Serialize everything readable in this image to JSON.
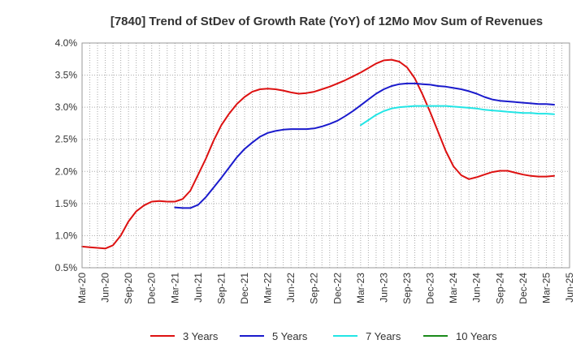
{
  "chart_data": {
    "type": "line",
    "title": "[7840]  Trend of StDev of Growth Rate (YoY) of 12Mo Mov Sum of Revenues",
    "xlabel": "",
    "ylabel": "",
    "ylim": [
      0.5,
      4.0
    ],
    "y_ticks": [
      "0.5%",
      "1.0%",
      "1.5%",
      "2.0%",
      "2.5%",
      "3.0%",
      "3.5%",
      "4.0%"
    ],
    "x_tick_labels": [
      "Mar-20",
      "Jun-20",
      "Sep-20",
      "Dec-20",
      "Mar-21",
      "Jun-21",
      "Sep-21",
      "Dec-21",
      "Mar-22",
      "Jun-22",
      "Sep-22",
      "Dec-22",
      "Mar-23",
      "Jun-23",
      "Sep-23",
      "Dec-23",
      "Mar-24",
      "Jun-24",
      "Sep-24",
      "Dec-24",
      "Mar-25",
      "Jun-25"
    ],
    "x_unit": "months since Mar-20",
    "grid": true,
    "legend_position": "bottom",
    "series": [
      {
        "name": "3 Years",
        "color": "#dd1111",
        "points": [
          [
            0,
            0.83
          ],
          [
            1,
            0.82
          ],
          [
            2,
            0.81
          ],
          [
            3,
            0.8
          ],
          [
            4,
            0.85
          ],
          [
            5,
            1.0
          ],
          [
            6,
            1.22
          ],
          [
            7,
            1.38
          ],
          [
            8,
            1.47
          ],
          [
            9,
            1.53
          ],
          [
            10,
            1.54
          ],
          [
            11,
            1.53
          ],
          [
            12,
            1.53
          ],
          [
            13,
            1.57
          ],
          [
            14,
            1.7
          ],
          [
            15,
            1.95
          ],
          [
            16,
            2.2
          ],
          [
            17,
            2.48
          ],
          [
            18,
            2.72
          ],
          [
            19,
            2.9
          ],
          [
            20,
            3.05
          ],
          [
            21,
            3.16
          ],
          [
            22,
            3.24
          ],
          [
            23,
            3.28
          ],
          [
            24,
            3.29
          ],
          [
            25,
            3.28
          ],
          [
            26,
            3.26
          ],
          [
            27,
            3.23
          ],
          [
            28,
            3.21
          ],
          [
            29,
            3.22
          ],
          [
            30,
            3.24
          ],
          [
            31,
            3.28
          ],
          [
            32,
            3.32
          ],
          [
            33,
            3.37
          ],
          [
            34,
            3.42
          ],
          [
            35,
            3.48
          ],
          [
            36,
            3.54
          ],
          [
            37,
            3.61
          ],
          [
            38,
            3.68
          ],
          [
            39,
            3.73
          ],
          [
            40,
            3.74
          ],
          [
            41,
            3.71
          ],
          [
            42,
            3.62
          ],
          [
            43,
            3.45
          ],
          [
            44,
            3.2
          ],
          [
            45,
            2.92
          ],
          [
            46,
            2.62
          ],
          [
            47,
            2.32
          ],
          [
            48,
            2.08
          ],
          [
            49,
            1.94
          ],
          [
            50,
            1.88
          ],
          [
            51,
            1.91
          ],
          [
            52,
            1.95
          ],
          [
            53,
            1.99
          ],
          [
            54,
            2.01
          ],
          [
            55,
            2.01
          ],
          [
            56,
            1.98
          ],
          [
            57,
            1.95
          ],
          [
            58,
            1.93
          ],
          [
            59,
            1.92
          ],
          [
            60,
            1.92
          ],
          [
            61,
            1.93
          ]
        ]
      },
      {
        "name": "5 Years",
        "color": "#1a1acc",
        "points": [
          [
            12,
            1.44
          ],
          [
            13,
            1.43
          ],
          [
            14,
            1.43
          ],
          [
            15,
            1.48
          ],
          [
            16,
            1.6
          ],
          [
            17,
            1.75
          ],
          [
            18,
            1.9
          ],
          [
            19,
            2.06
          ],
          [
            20,
            2.22
          ],
          [
            21,
            2.35
          ],
          [
            22,
            2.45
          ],
          [
            23,
            2.54
          ],
          [
            24,
            2.6
          ],
          [
            25,
            2.63
          ],
          [
            26,
            2.65
          ],
          [
            27,
            2.66
          ],
          [
            28,
            2.66
          ],
          [
            29,
            2.66
          ],
          [
            30,
            2.67
          ],
          [
            31,
            2.7
          ],
          [
            32,
            2.74
          ],
          [
            33,
            2.79
          ],
          [
            34,
            2.86
          ],
          [
            35,
            2.94
          ],
          [
            36,
            3.03
          ],
          [
            37,
            3.12
          ],
          [
            38,
            3.21
          ],
          [
            39,
            3.28
          ],
          [
            40,
            3.33
          ],
          [
            41,
            3.36
          ],
          [
            42,
            3.37
          ],
          [
            43,
            3.37
          ],
          [
            44,
            3.36
          ],
          [
            45,
            3.35
          ],
          [
            46,
            3.33
          ],
          [
            47,
            3.32
          ],
          [
            48,
            3.3
          ],
          [
            49,
            3.28
          ],
          [
            50,
            3.25
          ],
          [
            51,
            3.21
          ],
          [
            52,
            3.16
          ],
          [
            53,
            3.12
          ],
          [
            54,
            3.1
          ],
          [
            55,
            3.09
          ],
          [
            56,
            3.08
          ],
          [
            57,
            3.07
          ],
          [
            58,
            3.06
          ],
          [
            59,
            3.05
          ],
          [
            60,
            3.05
          ],
          [
            61,
            3.04
          ]
        ]
      },
      {
        "name": "7 Years",
        "color": "#22e5e5",
        "points": [
          [
            36,
            2.72
          ],
          [
            37,
            2.8
          ],
          [
            38,
            2.88
          ],
          [
            39,
            2.94
          ],
          [
            40,
            2.98
          ],
          [
            41,
            3.0
          ],
          [
            42,
            3.01
          ],
          [
            43,
            3.02
          ],
          [
            44,
            3.02
          ],
          [
            45,
            3.02
          ],
          [
            46,
            3.02
          ],
          [
            47,
            3.02
          ],
          [
            48,
            3.01
          ],
          [
            49,
            3.0
          ],
          [
            50,
            2.99
          ],
          [
            51,
            2.98
          ],
          [
            52,
            2.96
          ],
          [
            53,
            2.95
          ],
          [
            54,
            2.94
          ],
          [
            55,
            2.93
          ],
          [
            56,
            2.92
          ],
          [
            57,
            2.91
          ],
          [
            58,
            2.91
          ],
          [
            59,
            2.9
          ],
          [
            60,
            2.9
          ],
          [
            61,
            2.89
          ]
        ]
      },
      {
        "name": "10 Years",
        "color": "#1a8a1a",
        "points": []
      }
    ]
  }
}
